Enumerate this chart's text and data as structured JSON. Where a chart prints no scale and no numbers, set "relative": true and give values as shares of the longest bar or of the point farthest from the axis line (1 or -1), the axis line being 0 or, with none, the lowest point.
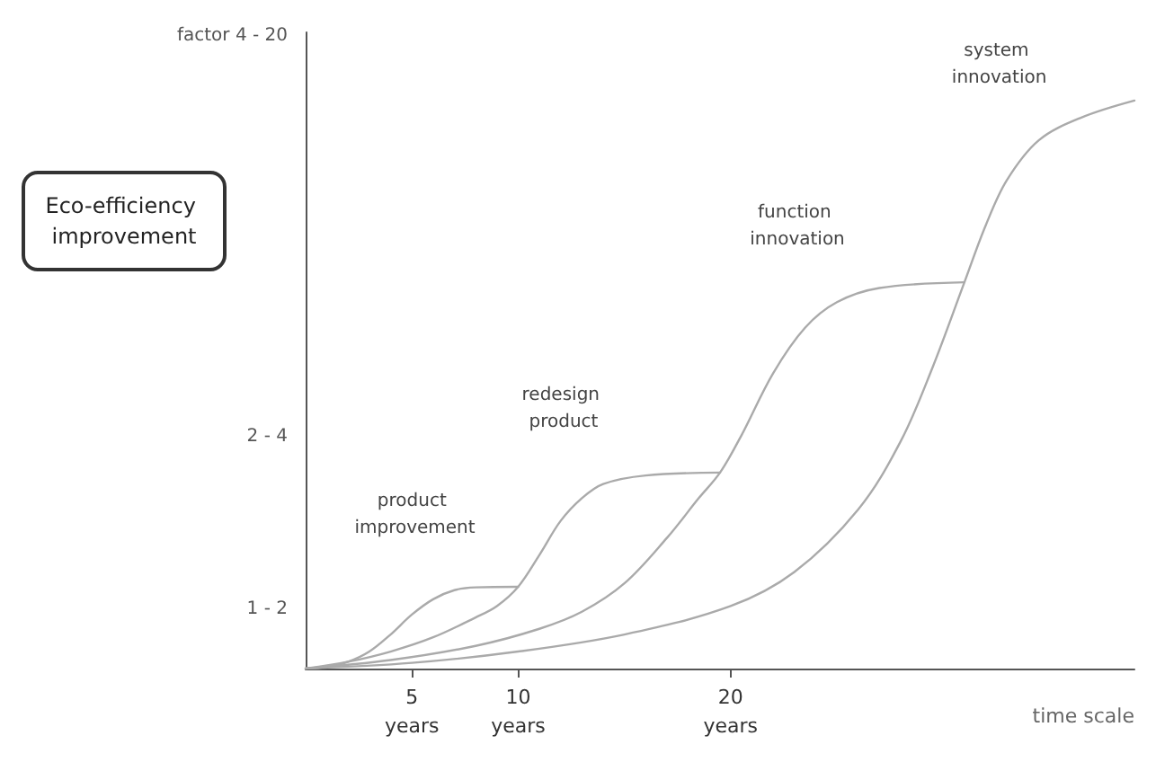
{
  "chart_data": {
    "type": "line",
    "relative": true,
    "xlabel": "time scale",
    "xlim": [
      0,
      39
    ],
    "xticks": [
      {
        "value": 5,
        "label": "5 years"
      },
      {
        "value": 10,
        "label": "10 years"
      },
      {
        "value": 20,
        "label": "20 years"
      }
    ],
    "grid": false,
    "marker": "none",
    "line_style": "solid",
    "series": [
      {
        "name": "product improvement",
        "color": "#aaaaaa",
        "x": [
          0,
          1,
          2,
          3,
          4,
          5,
          6,
          7,
          8,
          10
        ],
        "values": [
          0,
          0.003,
          0.012,
          0.03,
          0.06,
          0.095,
          0.122,
          0.138,
          0.143,
          0.144
        ]
      },
      {
        "name": "redesign product",
        "color": "#aaaaaa",
        "x": [
          0,
          2,
          4,
          6,
          8,
          9,
          10,
          11,
          12,
          13,
          14,
          16,
          19.5
        ],
        "values": [
          0,
          0.012,
          0.03,
          0.055,
          0.09,
          0.11,
          0.144,
          0.2,
          0.26,
          0.3,
          0.325,
          0.34,
          0.345
        ]
      },
      {
        "name": "function innovation",
        "color": "#aaaaaa",
        "x": [
          0,
          4,
          8,
          11,
          13,
          15,
          17,
          18.5,
          19.5,
          20.5,
          22,
          23.5,
          25,
          27,
          31
        ],
        "values": [
          0,
          0.015,
          0.04,
          0.07,
          0.1,
          0.15,
          0.23,
          0.3,
          0.345,
          0.41,
          0.52,
          0.6,
          0.645,
          0.67,
          0.68
        ]
      },
      {
        "name": "system innovation",
        "color": "#aaaaaa",
        "x": [
          0,
          5,
          10,
          15,
          20,
          23,
          26,
          28,
          29.5,
          31,
          32,
          33,
          34.5,
          36.5,
          39
        ],
        "values": [
          0,
          0.01,
          0.03,
          0.06,
          0.11,
          0.17,
          0.28,
          0.4,
          0.53,
          0.68,
          0.78,
          0.86,
          0.93,
          0.97,
          1
        ]
      }
    ],
    "annotations": [
      "Eco-efficiency improvement",
      "1 - 2",
      "2 - 4",
      "factor 4 - 20"
    ]
  }
}
